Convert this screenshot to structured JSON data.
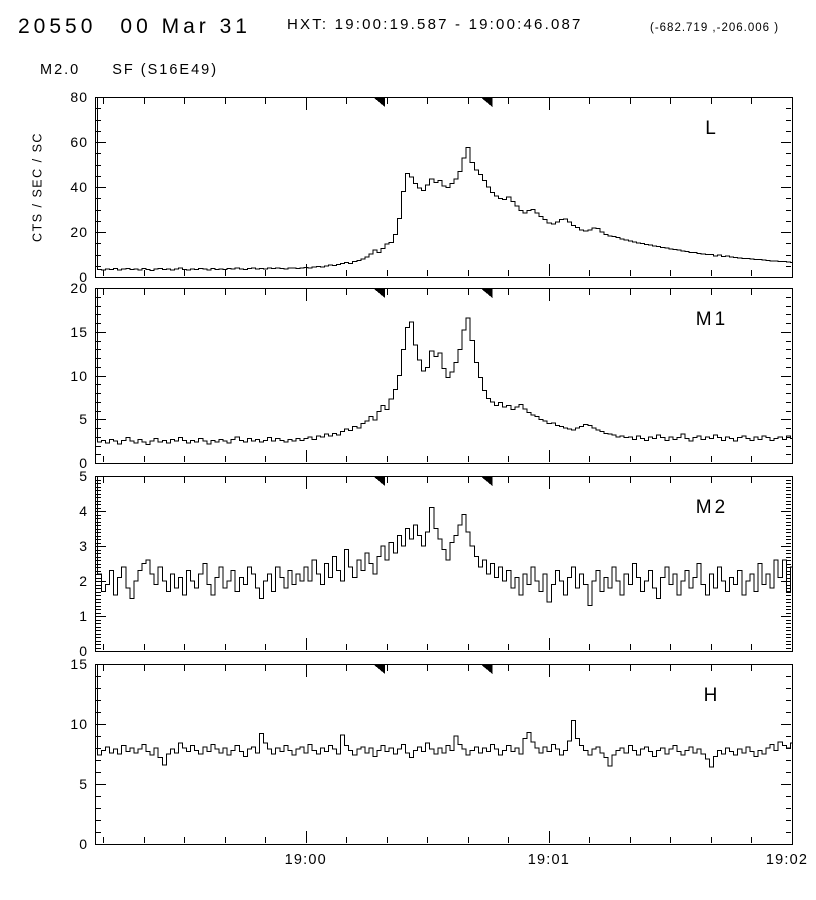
{
  "header": {
    "event_id": "20550",
    "date": "00 Mar 31",
    "hxt_interval": "HXT: 19:00:19.587 - 19:00:46.087",
    "coordinates": "(-682.719 ,-206.006 )",
    "goes_class": "M2.0",
    "flare_type_location": "SF (S16E49)"
  },
  "colors": {
    "foreground": "#000000",
    "background": "#ffffff"
  },
  "chart_data": {
    "type": "line",
    "style": "step-histogram",
    "instrument": "HXT",
    "ylabel": "CTS / SEC / SC",
    "x_axis": {
      "tick_labels": [
        "19:00",
        "19:01",
        "19:02"
      ],
      "tick_positions_s": [
        0,
        60,
        120
      ],
      "minor_step_s": 10,
      "axis_start_s": -52,
      "axis_end_s": 120
    },
    "sample_cadence_s": 1,
    "data_start_s": -51.4,
    "image_interval_markers_s": [
      19.587,
      46.087
    ],
    "panels": [
      {
        "label": "L",
        "ylim": [
          0,
          80
        ],
        "yticks": [
          0,
          20,
          40,
          60,
          80
        ],
        "minor_step": 5,
        "values": [
          3.4,
          3.1,
          3.6,
          3.3,
          3.7,
          3.2,
          3.5,
          3.8,
          3.3,
          3.6,
          3.2,
          3.7,
          3.4,
          3.0,
          3.5,
          3.8,
          3.4,
          3.6,
          3.2,
          3.5,
          3.9,
          3.4,
          3.1,
          3.6,
          3.3,
          3.8,
          3.5,
          3.2,
          3.7,
          3.4,
          3.6,
          3.3,
          3.8,
          3.5,
          3.9,
          3.6,
          3.4,
          3.7,
          4.0,
          3.6,
          3.8,
          3.5,
          3.9,
          3.7,
          4.0,
          3.8,
          3.6,
          3.9,
          4.1,
          3.8,
          4.0,
          4.3,
          4.1,
          4.5,
          4.7,
          4.4,
          5.0,
          5.3,
          5.1,
          5.6,
          6.1,
          6.4,
          6.1,
          6.8,
          7.3,
          7.9,
          9.0,
          10.2,
          12.0,
          10.8,
          12.6,
          14.6,
          15.4,
          19.0,
          26.0,
          38.0,
          46.0,
          44.5,
          41.5,
          39.5,
          38.5,
          41.0,
          43.5,
          42.0,
          43.0,
          40.5,
          39.8,
          41.5,
          43.5,
          47.0,
          53.0,
          57.5,
          51.0,
          47.5,
          45.5,
          43.0,
          40.0,
          37.5,
          36.0,
          35.0,
          34.5,
          35.5,
          33.5,
          31.5,
          29.5,
          28.5,
          29.5,
          30.0,
          28.5,
          27.0,
          25.5,
          24.0,
          23.5,
          24.5,
          25.5,
          25.8,
          24.5,
          23.0,
          22.0,
          21.0,
          20.5,
          21.0,
          21.8,
          21.5,
          20.0,
          19.0,
          18.3,
          18.0,
          17.5,
          17.0,
          16.5,
          16.0,
          15.5,
          15.2,
          15.0,
          14.5,
          14.2,
          13.8,
          13.5,
          13.2,
          12.8,
          12.5,
          12.2,
          12.0,
          11.6,
          11.4,
          11.0,
          10.8,
          10.5,
          10.2,
          10.0,
          9.9,
          9.4,
          9.7,
          9.1,
          9.3,
          8.9,
          8.7,
          8.5,
          8.3,
          8.2,
          8.0,
          7.8,
          7.7,
          7.5,
          7.4,
          7.2,
          7.1,
          7.0,
          6.8,
          6.7,
          6.5
        ]
      },
      {
        "label": "M1",
        "ylim": [
          0,
          20
        ],
        "yticks": [
          0,
          5,
          10,
          15,
          20
        ],
        "minor_step": 1,
        "values": [
          2.4,
          2.6,
          2.3,
          2.7,
          2.5,
          2.2,
          2.6,
          2.9,
          2.5,
          2.3,
          2.7,
          2.4,
          2.1,
          2.5,
          2.8,
          2.4,
          2.6,
          2.3,
          2.7,
          2.5,
          2.9,
          2.6,
          2.3,
          2.6,
          2.4,
          2.8,
          2.5,
          2.2,
          2.6,
          2.4,
          2.7,
          2.5,
          2.3,
          2.7,
          3.0,
          2.6,
          2.4,
          2.8,
          2.5,
          2.7,
          2.4,
          2.6,
          2.9,
          2.5,
          2.8,
          2.6,
          2.4,
          2.7,
          2.5,
          2.8,
          2.6,
          2.8,
          3.0,
          2.7,
          3.1,
          3.0,
          3.3,
          3.1,
          3.4,
          3.2,
          3.6,
          3.9,
          3.7,
          4.2,
          4.0,
          4.5,
          4.8,
          5.3,
          4.9,
          5.9,
          6.6,
          6.1,
          7.3,
          8.4,
          10.0,
          13.0,
          15.5,
          16.1,
          13.5,
          11.8,
          10.5,
          10.9,
          12.8,
          12.2,
          12.6,
          10.8,
          9.8,
          10.4,
          11.5,
          13.0,
          15.2,
          16.6,
          14.0,
          11.5,
          9.8,
          8.3,
          7.4,
          7.0,
          6.6,
          6.9,
          6.4,
          6.6,
          6.1,
          6.4,
          6.7,
          6.2,
          5.8,
          5.5,
          5.3,
          5.0,
          4.8,
          4.5,
          4.6,
          4.3,
          4.2,
          4.0,
          3.9,
          3.8,
          4.0,
          4.2,
          4.4,
          4.3,
          4.0,
          3.8,
          3.6,
          3.4,
          3.3,
          3.2,
          3.0,
          3.1,
          2.9,
          3.0,
          2.7,
          3.1,
          2.8,
          2.6,
          3.0,
          2.8,
          3.2,
          2.9,
          2.6,
          3.0,
          2.7,
          2.9,
          3.3,
          2.8,
          2.5,
          2.9,
          3.1,
          2.7,
          3.0,
          2.8,
          3.2,
          2.9,
          2.6,
          3.0,
          2.8,
          2.5,
          2.9,
          3.1,
          2.8,
          2.6,
          3.0,
          2.7,
          3.1,
          2.9,
          2.6,
          2.8,
          3.0,
          2.7,
          3.1,
          2.8
        ]
      },
      {
        "label": "M2",
        "ylim": [
          0,
          5
        ],
        "yticks": [
          0,
          1,
          2,
          3,
          4,
          5
        ],
        "minor_step": 0.1,
        "values": [
          2.2,
          1.7,
          1.9,
          2.3,
          1.6,
          2.1,
          2.4,
          1.8,
          1.5,
          2.0,
          2.3,
          2.5,
          2.6,
          2.2,
          1.9,
          2.4,
          2.0,
          1.7,
          2.2,
          1.8,
          2.1,
          1.6,
          2.3,
          2.0,
          1.8,
          2.2,
          2.5,
          1.9,
          1.6,
          2.1,
          2.4,
          1.8,
          2.0,
          2.3,
          1.7,
          2.1,
          1.9,
          2.4,
          2.2,
          1.8,
          1.5,
          2.0,
          2.2,
          1.7,
          2.4,
          2.1,
          1.8,
          2.3,
          1.9,
          2.2,
          2.0,
          2.4,
          2.0,
          2.6,
          2.2,
          1.9,
          2.5,
          2.1,
          2.7,
          2.3,
          2.0,
          2.9,
          2.4,
          2.1,
          2.6,
          2.3,
          2.8,
          2.5,
          2.2,
          2.7,
          3.0,
          2.6,
          3.1,
          2.8,
          3.3,
          3.0,
          3.5,
          3.2,
          3.6,
          3.3,
          3.0,
          3.4,
          4.1,
          3.5,
          3.2,
          2.9,
          2.6,
          3.1,
          3.3,
          3.6,
          3.9,
          3.4,
          3.0,
          2.7,
          2.4,
          2.6,
          2.2,
          2.5,
          2.1,
          2.4,
          2.0,
          2.3,
          1.8,
          2.1,
          1.6,
          2.2,
          1.9,
          2.4,
          2.0,
          1.7,
          2.2,
          1.4,
          1.9,
          2.3,
          2.0,
          1.6,
          2.1,
          2.4,
          1.8,
          2.2,
          1.9,
          1.3,
          2.0,
          2.3,
          1.7,
          2.1,
          1.8,
          2.4,
          2.0,
          1.6,
          2.2,
          1.9,
          2.5,
          2.1,
          1.7,
          2.0,
          2.3,
          1.8,
          1.5,
          2.1,
          2.4,
          1.9,
          2.2,
          1.6,
          2.0,
          2.3,
          1.8,
          2.1,
          2.5,
          1.9,
          1.6,
          2.2,
          1.8,
          2.4,
          2.0,
          1.7,
          2.1,
          1.9,
          2.3,
          1.6,
          2.0,
          2.2,
          1.7,
          2.5,
          1.9,
          2.2,
          1.8,
          2.6,
          2.1,
          2.6,
          1.7,
          2.4
        ]
      },
      {
        "label": "H",
        "ylim": [
          0,
          15
        ],
        "yticks": [
          0,
          5,
          10,
          15
        ],
        "minor_step": 1,
        "values": [
          7.4,
          7.8,
          8.1,
          7.6,
          7.9,
          7.5,
          8.2,
          7.7,
          8.0,
          7.6,
          7.9,
          8.3,
          7.7,
          7.4,
          8.0,
          7.2,
          6.6,
          7.5,
          7.9,
          7.6,
          8.4,
          8.0,
          7.7,
          8.2,
          7.8,
          7.5,
          8.1,
          7.7,
          8.3,
          7.9,
          7.6,
          8.0,
          7.4,
          7.8,
          8.2,
          7.7,
          7.3,
          7.9,
          8.1,
          7.6,
          9.2,
          8.4,
          7.9,
          7.5,
          8.0,
          7.7,
          8.2,
          7.8,
          7.4,
          7.9,
          8.1,
          7.6,
          8.3,
          7.8,
          7.5,
          8.0,
          7.7,
          8.2,
          7.9,
          7.5,
          9.1,
          8.2,
          7.8,
          7.4,
          7.9,
          8.1,
          7.6,
          8.0,
          7.3,
          7.8,
          8.2,
          7.7,
          8.0,
          7.5,
          7.9,
          8.3,
          7.6,
          7.2,
          7.8,
          8.1,
          7.7,
          8.4,
          7.9,
          7.5,
          8.0,
          7.6,
          8.2,
          7.8,
          9.0,
          8.3,
          7.9,
          7.4,
          7.8,
          8.1,
          7.6,
          8.0,
          7.7,
          8.3,
          7.9,
          7.4,
          7.8,
          8.2,
          7.7,
          8.0,
          7.5,
          8.8,
          9.3,
          8.5,
          8.0,
          7.6,
          8.1,
          7.7,
          8.3,
          7.9,
          7.4,
          7.8,
          8.6,
          10.3,
          8.8,
          8.2,
          7.8,
          7.4,
          7.9,
          8.1,
          7.6,
          7.2,
          6.5,
          7.4,
          7.8,
          8.0,
          7.6,
          8.2,
          7.8,
          7.4,
          7.9,
          8.1,
          7.7,
          7.3,
          7.8,
          8.0,
          7.5,
          7.9,
          8.2,
          7.7,
          7.4,
          7.8,
          8.1,
          7.6,
          7.9,
          7.5,
          7.1,
          6.4,
          7.3,
          7.8,
          7.5,
          8.0,
          7.7,
          7.4,
          7.9,
          7.6,
          8.1,
          7.7,
          7.3,
          7.8,
          7.5,
          8.0,
          8.3,
          7.8,
          8.5,
          8.2,
          8.0,
          8.4
        ]
      }
    ]
  }
}
